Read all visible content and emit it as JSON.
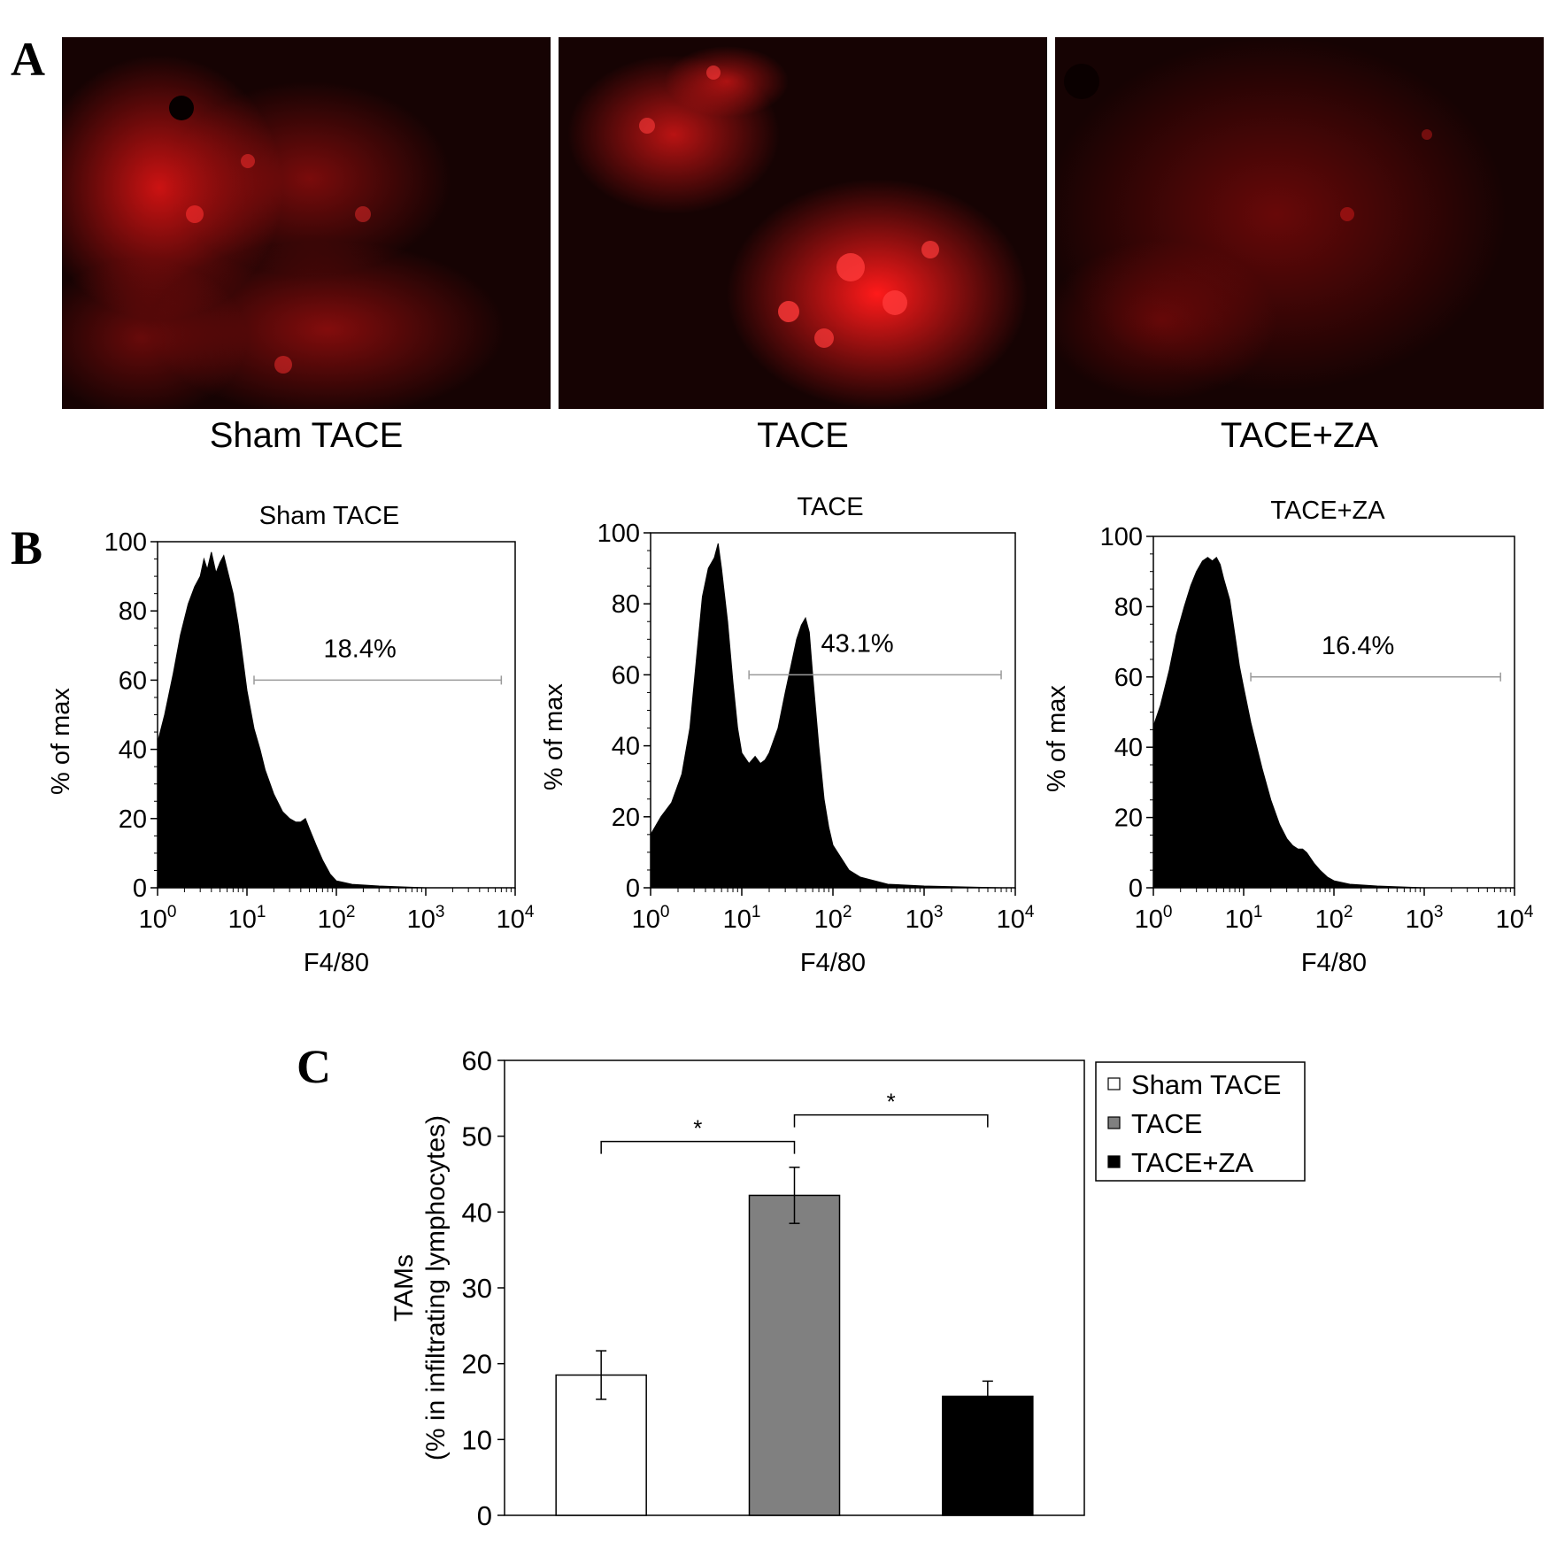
{
  "panels": {
    "a": {
      "letter": "A",
      "images": [
        {
          "label": "Sham TACE",
          "tint": "#d01010"
        },
        {
          "label": "TACE",
          "tint": "#ff1a1a"
        },
        {
          "label": "TACE+ZA",
          "tint": "#a00c0c"
        }
      ]
    },
    "b": {
      "letter": "B"
    },
    "c": {
      "letter": "C"
    }
  },
  "chart_data": [
    {
      "type": "area",
      "panel": "B",
      "title": "Sham TACE",
      "xlabel": "F4/80",
      "ylabel": "% of max",
      "xscale": "log",
      "xlim": [
        1,
        10000
      ],
      "ylim": [
        0,
        100
      ],
      "yticks": [
        0,
        20,
        40,
        60,
        80,
        100
      ],
      "xtick_exponents": [
        "0",
        "1",
        "2",
        "3",
        "4"
      ],
      "gate": {
        "label": "18.4%",
        "x_range": [
          12,
          7000
        ],
        "y": 60
      },
      "points": [
        [
          1,
          0
        ],
        [
          1,
          42
        ],
        [
          1.2,
          50
        ],
        [
          1.5,
          62
        ],
        [
          1.8,
          73
        ],
        [
          2.2,
          82
        ],
        [
          2.6,
          87
        ],
        [
          3,
          90
        ],
        [
          3.3,
          95
        ],
        [
          3.6,
          92
        ],
        [
          4,
          97
        ],
        [
          4.5,
          91
        ],
        [
          5,
          94
        ],
        [
          5.5,
          96
        ],
        [
          6,
          92
        ],
        [
          7,
          85
        ],
        [
          8,
          76
        ],
        [
          9,
          66
        ],
        [
          10,
          57
        ],
        [
          12,
          46
        ],
        [
          14,
          40
        ],
        [
          16,
          34
        ],
        [
          20,
          27
        ],
        [
          25,
          22
        ],
        [
          30,
          20
        ],
        [
          35,
          19
        ],
        [
          40,
          19
        ],
        [
          45,
          20
        ],
        [
          50,
          17
        ],
        [
          60,
          12
        ],
        [
          70,
          8
        ],
        [
          85,
          4
        ],
        [
          100,
          2
        ],
        [
          150,
          1
        ],
        [
          300,
          0.5
        ],
        [
          1000,
          0
        ],
        [
          7000,
          0
        ]
      ],
      "fill": "#000000"
    },
    {
      "type": "area",
      "panel": "B",
      "title": "TACE",
      "xlabel": "F4/80",
      "ylabel": "% of max",
      "xscale": "log",
      "xlim": [
        1,
        10000
      ],
      "ylim": [
        0,
        100
      ],
      "yticks": [
        0,
        20,
        40,
        60,
        80,
        100
      ],
      "xtick_exponents": [
        "0",
        "1",
        "2",
        "3",
        "4"
      ],
      "gate": {
        "label": "43.1%",
        "x_range": [
          12,
          7000
        ],
        "y": 60
      },
      "points": [
        [
          1,
          0
        ],
        [
          1,
          15
        ],
        [
          1.3,
          20
        ],
        [
          1.7,
          24
        ],
        [
          2.2,
          32
        ],
        [
          2.7,
          45
        ],
        [
          3.2,
          65
        ],
        [
          3.7,
          82
        ],
        [
          4.3,
          90
        ],
        [
          5,
          93
        ],
        [
          5.5,
          97
        ],
        [
          6,
          90
        ],
        [
          7,
          75
        ],
        [
          8,
          58
        ],
        [
          9,
          45
        ],
        [
          10,
          38
        ],
        [
          12,
          35
        ],
        [
          14,
          37
        ],
        [
          16,
          35
        ],
        [
          18,
          36
        ],
        [
          20,
          38
        ],
        [
          25,
          45
        ],
        [
          30,
          55
        ],
        [
          35,
          63
        ],
        [
          40,
          70
        ],
        [
          45,
          74
        ],
        [
          50,
          76
        ],
        [
          55,
          72
        ],
        [
          60,
          60
        ],
        [
          70,
          40
        ],
        [
          80,
          25
        ],
        [
          90,
          17
        ],
        [
          100,
          12
        ],
        [
          150,
          5
        ],
        [
          200,
          3
        ],
        [
          400,
          1
        ],
        [
          1000,
          0.5
        ],
        [
          7000,
          0
        ]
      ],
      "fill": "#000000"
    },
    {
      "type": "area",
      "panel": "B",
      "title": "TACE+ZA",
      "xlabel": "F4/80",
      "ylabel": "% of max",
      "xscale": "log",
      "xlim": [
        1,
        10000
      ],
      "ylim": [
        0,
        100
      ],
      "yticks": [
        0,
        20,
        40,
        60,
        80,
        100
      ],
      "xtick_exponents": [
        "0",
        "1",
        "2",
        "3",
        "4"
      ],
      "gate": {
        "label": "16.4%",
        "x_range": [
          12,
          7000
        ],
        "y": 60
      },
      "points": [
        [
          1,
          0
        ],
        [
          1,
          46
        ],
        [
          1.2,
          52
        ],
        [
          1.5,
          62
        ],
        [
          1.8,
          72
        ],
        [
          2.2,
          80
        ],
        [
          2.6,
          86
        ],
        [
          3,
          90
        ],
        [
          3.5,
          93
        ],
        [
          4,
          94
        ],
        [
          4.5,
          93
        ],
        [
          5,
          94
        ],
        [
          5.5,
          92
        ],
        [
          6,
          88
        ],
        [
          7,
          82
        ],
        [
          8,
          72
        ],
        [
          9,
          63
        ],
        [
          10,
          57
        ],
        [
          12,
          47
        ],
        [
          14,
          40
        ],
        [
          16,
          34
        ],
        [
          20,
          25
        ],
        [
          25,
          18
        ],
        [
          30,
          14
        ],
        [
          35,
          12
        ],
        [
          40,
          11
        ],
        [
          45,
          11
        ],
        [
          50,
          10
        ],
        [
          60,
          7
        ],
        [
          70,
          5
        ],
        [
          85,
          3
        ],
        [
          100,
          2
        ],
        [
          150,
          1
        ],
        [
          300,
          0.5
        ],
        [
          1000,
          0
        ],
        [
          7000,
          0
        ]
      ],
      "fill": "#000000"
    },
    {
      "type": "bar",
      "panel": "C",
      "ylabel_lines": [
        "TAMs",
        "(% in infiltrating lymphocytes)"
      ],
      "ylim": [
        0,
        60
      ],
      "yticks": [
        0,
        10,
        20,
        30,
        40,
        50,
        60
      ],
      "categories": [
        "Sham TACE",
        "TACE",
        "TACE+ZA"
      ],
      "values": [
        18.5,
        42.2,
        15.7
      ],
      "errors": [
        3.2,
        3.7,
        2.0
      ],
      "colors": [
        "#ffffff",
        "#808080",
        "#000000"
      ],
      "legend": {
        "position": "right",
        "entries": [
          "Sham TACE",
          "TACE",
          "TACE+ZA"
        ]
      },
      "significance": [
        {
          "from": 0,
          "to": 1,
          "y": 49.3,
          "label": "*"
        },
        {
          "from": 1,
          "to": 2,
          "y": 52.8,
          "label": "*"
        }
      ]
    }
  ]
}
